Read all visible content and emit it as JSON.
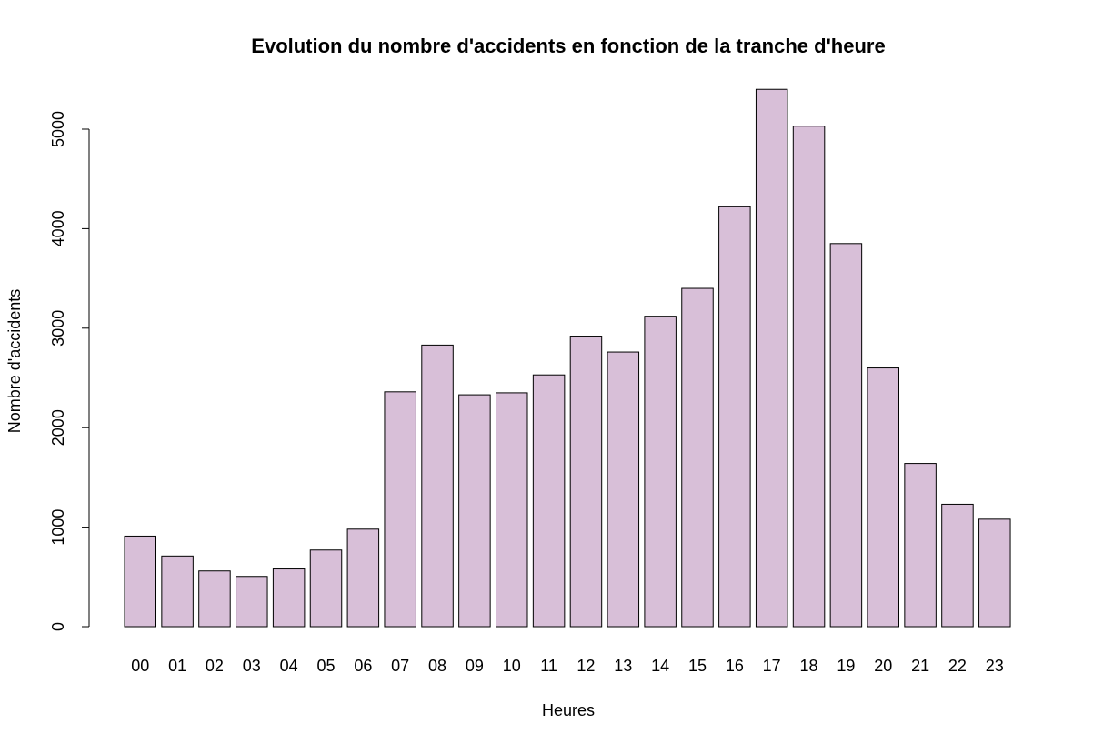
{
  "chart_data": {
    "type": "bar",
    "title": "Evolution du nombre d'accidents en fonction de la tranche d'heure",
    "xlabel": "Heures",
    "ylabel": "Nombre d'accidents",
    "categories": [
      "00",
      "01",
      "02",
      "03",
      "04",
      "05",
      "06",
      "07",
      "08",
      "09",
      "10",
      "11",
      "12",
      "13",
      "14",
      "15",
      "16",
      "17",
      "18",
      "19",
      "20",
      "21",
      "22",
      "23"
    ],
    "values": [
      910,
      710,
      560,
      505,
      580,
      770,
      980,
      2360,
      2830,
      2330,
      2350,
      2530,
      2920,
      2760,
      3120,
      3400,
      4220,
      5400,
      5030,
      3850,
      2600,
      1640,
      1230,
      1080
    ],
    "yticks": [
      0,
      1000,
      2000,
      3000,
      4000,
      5000
    ],
    "ylim": [
      0,
      5400
    ],
    "bar_color": "#d8bfd8",
    "grid": false,
    "legend": "none"
  }
}
